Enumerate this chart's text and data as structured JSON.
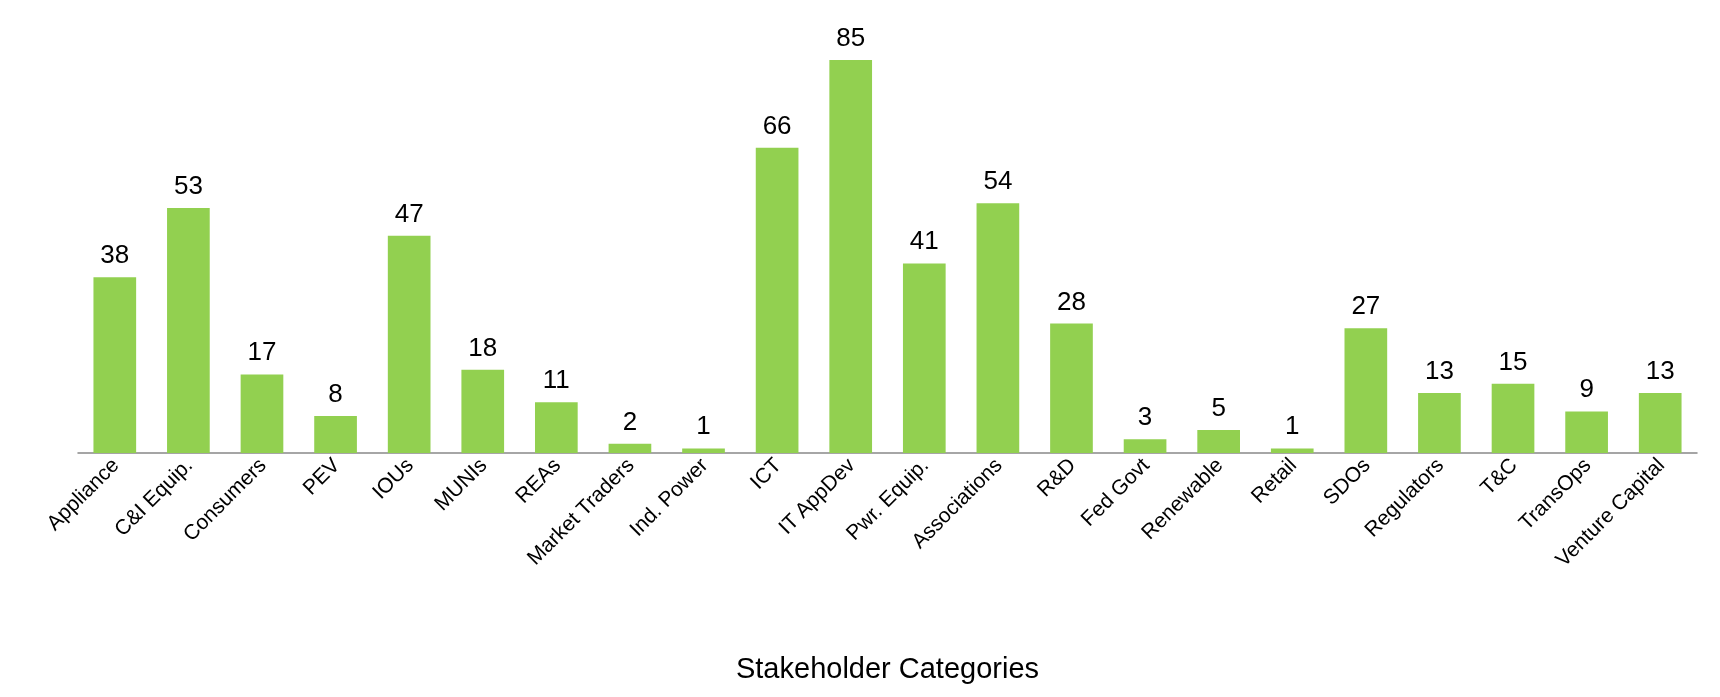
{
  "chart_data": {
    "type": "bar",
    "xlabel": "Stakeholder Categories",
    "color": "#92d050",
    "data_labels": true,
    "categories": [
      "Appliance",
      "C&I Equip.",
      "Consumers",
      "PEV",
      "IOUs",
      "MUNIs",
      "REAs",
      "Market Traders",
      "Ind. Power",
      "ICT",
      "IT AppDev",
      "Pwr. Equip.",
      "Associations",
      "R&D",
      "Fed Govt",
      "Renewable",
      "Retail",
      "SDOs",
      "Regulators",
      "T&C",
      "TransOps",
      "Venture Capital"
    ],
    "values": [
      38,
      53,
      17,
      8,
      47,
      18,
      11,
      2,
      1,
      66,
      85,
      41,
      54,
      28,
      3,
      5,
      1,
      27,
      13,
      15,
      9,
      13
    ]
  }
}
